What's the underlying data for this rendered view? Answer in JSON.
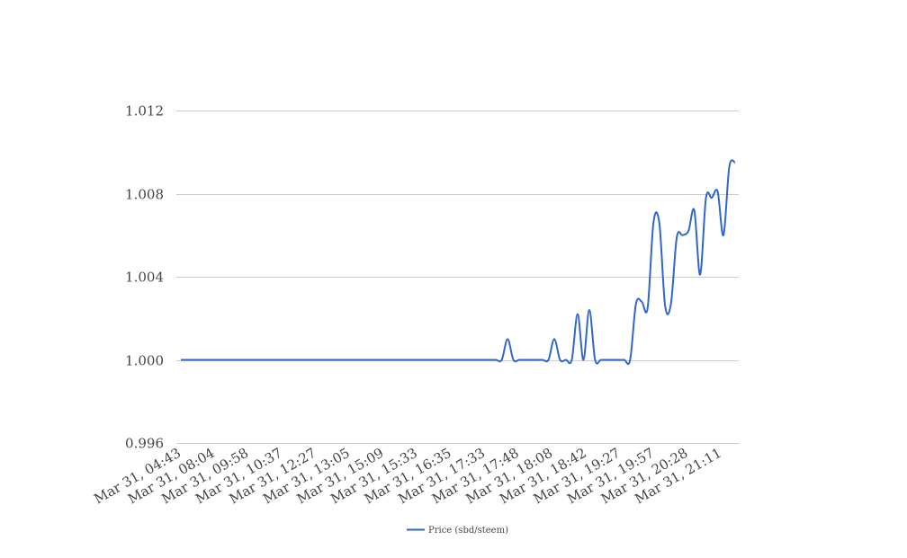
{
  "chart_data": {
    "type": "line",
    "title": "",
    "xlabel": "",
    "ylabel": "",
    "ylim": [
      0.996,
      1.012
    ],
    "yticks": [
      "0.996",
      "1.000",
      "1.004",
      "1.008",
      "1.012"
    ],
    "grid": true,
    "legend_position": "bottom",
    "x_tick_labels": [
      "Mar 31, 04:43",
      "Mar 31, 08:04",
      "Mar 31, 09:58",
      "Mar 31, 10:37",
      "Mar 31, 12:27",
      "Mar 31, 13:05",
      "Mar 31, 15:09",
      "Mar 31, 15:33",
      "Mar 31, 16:35",
      "Mar 31, 17:33",
      "Mar 31, 17:48",
      "Mar 31, 18:08",
      "Mar 31, 18:42",
      "Mar 31, 19:27",
      "Mar 31, 19:57",
      "Mar 31, 20:28",
      "Mar 31, 21:11"
    ],
    "series": [
      {
        "name": "Price (sbd/steem)",
        "color": "#3366cc",
        "values": [
          1.0,
          1.0,
          1.0,
          1.0,
          1.0,
          1.0,
          1.0,
          1.0,
          1.0,
          1.0,
          1.0,
          1.0,
          1.0,
          1.0,
          1.0,
          1.0,
          1.0,
          1.0,
          1.0,
          1.0,
          1.0,
          1.0,
          1.0,
          1.0,
          1.0,
          1.0,
          1.0,
          1.0,
          1.0,
          1.0,
          1.0,
          1.0,
          1.0,
          1.0,
          1.0,
          1.0,
          1.0,
          1.0,
          1.0,
          1.0,
          1.0,
          1.0,
          1.0,
          1.0,
          1.0,
          1.0,
          1.0,
          1.0,
          1.0,
          1.0,
          1.0,
          1.0,
          1.0,
          1.0,
          1.0,
          1.0,
          1.001,
          1.0,
          1.0,
          1.0,
          1.0,
          1.0,
          1.0,
          1.0,
          1.001,
          1.0,
          1.0,
          1.0,
          1.0022,
          1.0,
          1.0024,
          1.0,
          1.0,
          1.0,
          1.0,
          1.0,
          1.0,
          1.0,
          1.0027,
          1.0028,
          1.0025,
          1.0066,
          1.0066,
          1.0026,
          1.0027,
          1.0059,
          1.006,
          1.0062,
          1.0072,
          1.0041,
          1.0078,
          1.0078,
          1.0081,
          1.006,
          1.0093,
          1.0095
        ]
      }
    ]
  }
}
